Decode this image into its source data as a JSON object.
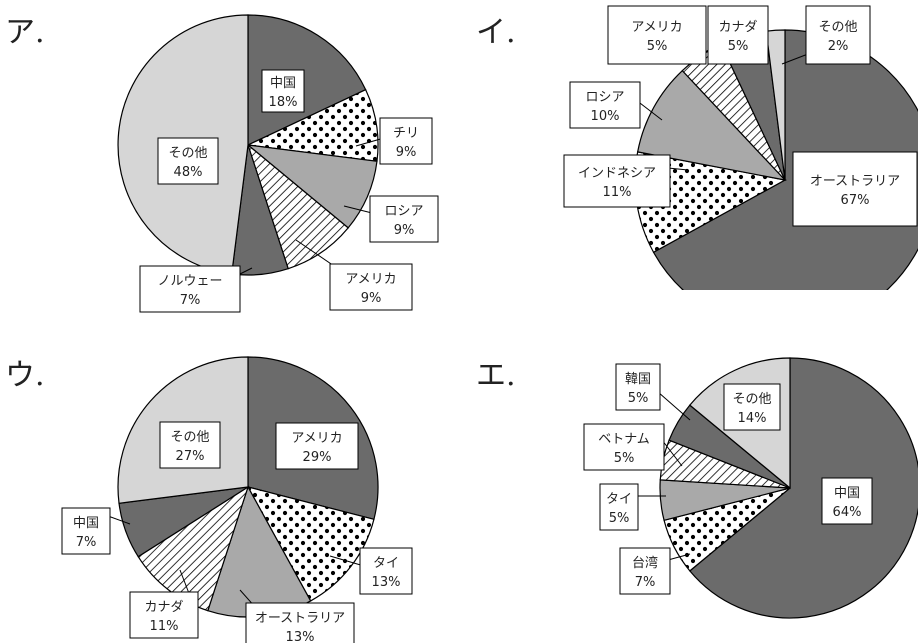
{
  "chart_data": [
    {
      "type": "pie",
      "title": "ア.",
      "slices": [
        {
          "name": "中国",
          "value": 18,
          "label": "18%"
        },
        {
          "name": "チリ",
          "value": 9,
          "label": "9%"
        },
        {
          "name": "ロシア",
          "value": 9,
          "label": "9%"
        },
        {
          "name": "アメリカ",
          "value": 9,
          "label": "9%"
        },
        {
          "name": "ノルウェー",
          "value": 7,
          "label": "7%"
        },
        {
          "name": "その他",
          "value": 48,
          "label": "48%"
        }
      ]
    },
    {
      "type": "pie",
      "title": "イ.",
      "slices": [
        {
          "name": "オーストラリア",
          "value": 67,
          "label": "67%"
        },
        {
          "name": "インドネシア",
          "value": 11,
          "label": "11%"
        },
        {
          "name": "ロシア",
          "value": 10,
          "label": "10%"
        },
        {
          "name": "アメリカ",
          "value": 5,
          "label": "5%"
        },
        {
          "name": "カナダ",
          "value": 5,
          "label": "5%"
        },
        {
          "name": "その他",
          "value": 2,
          "label": "2%"
        }
      ]
    },
    {
      "type": "pie",
      "title": "ウ.",
      "slices": [
        {
          "name": "アメリカ",
          "value": 29,
          "label": "29%"
        },
        {
          "name": "タイ",
          "value": 13,
          "label": "13%"
        },
        {
          "name": "オーストラリア",
          "value": 13,
          "label": "13%"
        },
        {
          "name": "カナダ",
          "value": 11,
          "label": "11%"
        },
        {
          "name": "中国",
          "value": 7,
          "label": "7%"
        },
        {
          "name": "その他",
          "value": 27,
          "label": "27%"
        }
      ]
    },
    {
      "type": "pie",
      "title": "エ.",
      "slices": [
        {
          "name": "中国",
          "value": 64,
          "label": "64%"
        },
        {
          "name": "台湾",
          "value": 7,
          "label": "7%"
        },
        {
          "name": "タイ",
          "value": 5,
          "label": "5%"
        },
        {
          "name": "ベトナム",
          "value": 5,
          "label": "5%"
        },
        {
          "name": "韓国",
          "value": 5,
          "label": "5%"
        },
        {
          "name": "その他",
          "value": 14,
          "label": "14%"
        }
      ]
    }
  ],
  "colors": {
    "dark": "#6b6b6b",
    "mid": "#a9a9a9",
    "light": "#d6d6d6",
    "dots": "#000000",
    "outline": "#000000"
  }
}
